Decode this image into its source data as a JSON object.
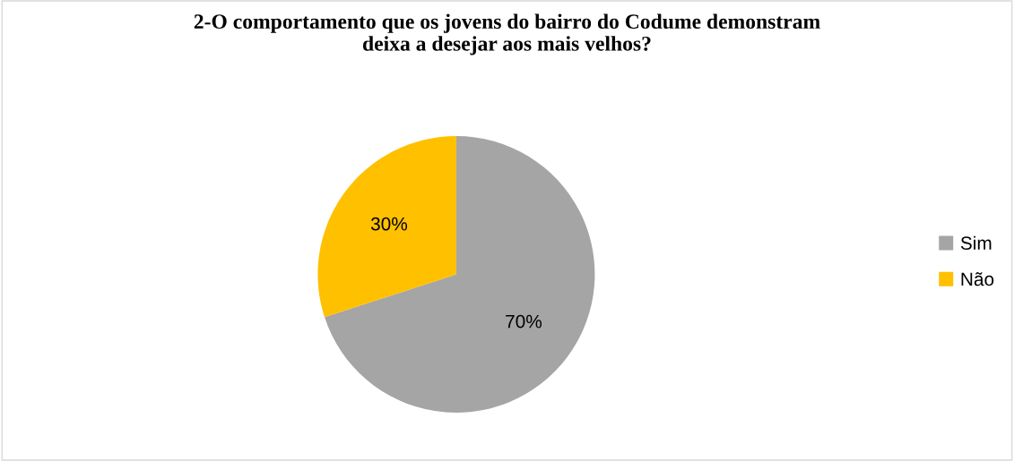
{
  "chart_data": {
    "type": "pie",
    "title": "2-O comportamento que os jovens do bairro do Codume demonstram\ndeixa a desejar aos mais velhos?",
    "categories": [
      "Sim",
      "Não"
    ],
    "values": [
      70,
      30
    ],
    "colors": [
      "#a5a5a5",
      "#ffc000"
    ],
    "value_labels": [
      "70%",
      "30%"
    ],
    "legend": "right"
  }
}
